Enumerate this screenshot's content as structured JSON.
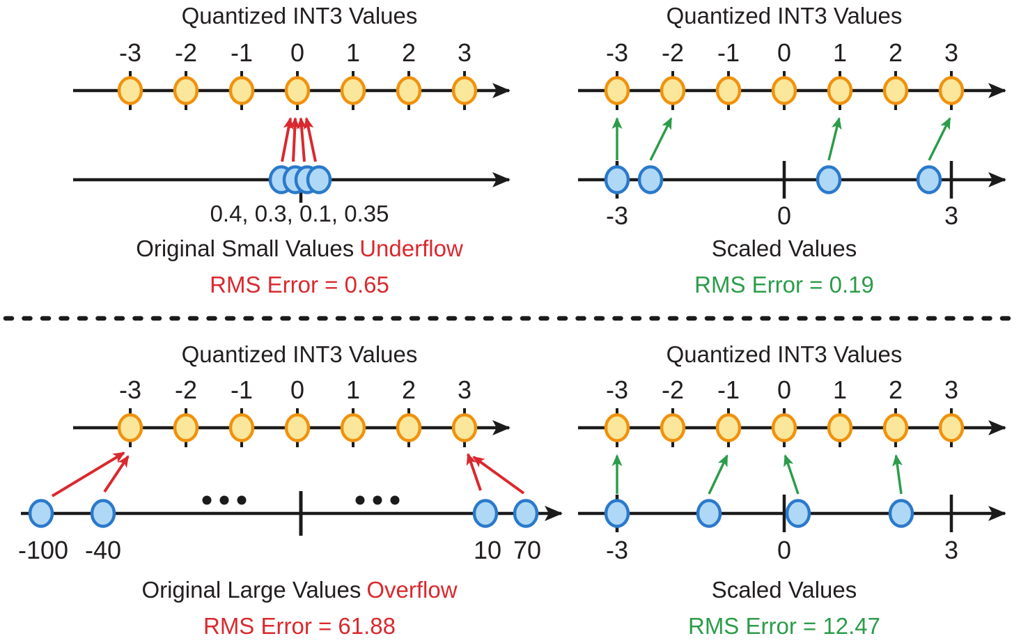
{
  "colors": {
    "text": "#221e1f",
    "line": "#1b1b1b",
    "red": "#d9292e",
    "green": "#2b9c49",
    "orange_stroke": "#f0920e",
    "orange_fill": "#fae79b",
    "blue_stroke": "#2b79cb",
    "blue_fill": "#aed8f6"
  },
  "diagram": {
    "panels": {
      "top_left": {
        "title": "Quantized INT3 Values",
        "int_labels": [
          "-3",
          "-2",
          "-1",
          "0",
          "1",
          "2",
          "3"
        ],
        "original_values": [
          0.4,
          0.3,
          0.1,
          0.35
        ],
        "mapped_to": [
          0,
          0,
          0,
          0
        ],
        "values_label": "0.4, 0.3, 0.1, 0.35",
        "caption_main": "Original Small Values",
        "caption_highlight": "Underflow",
        "rms_label": "RMS Error = 0.65"
      },
      "top_right": {
        "title": "Quantized INT3 Values",
        "int_labels": [
          "-3",
          "-2",
          "-1",
          "0",
          "1",
          "2",
          "3"
        ],
        "axis_tick_labels": [
          "-3",
          "0",
          "3"
        ],
        "scaled_points": [
          -3,
          -2.4,
          0.8,
          2.6
        ],
        "mapped_to": [
          -3,
          -2,
          1,
          3
        ],
        "caption_main": "Scaled Values",
        "rms_label": "RMS Error = 0.19"
      },
      "bottom_left": {
        "title": "Quantized INT3 Values",
        "int_labels": [
          "-3",
          "-2",
          "-1",
          "0",
          "1",
          "2",
          "3"
        ],
        "point_labels": [
          "-100",
          "-40",
          "10",
          "70"
        ],
        "mapped_to": [
          -3,
          -3,
          3,
          3
        ],
        "caption_main": "Original Large Values",
        "caption_highlight": "Overflow",
        "rms_label": "RMS Error = 61.88"
      },
      "bottom_right": {
        "title": "Quantized INT3 Values",
        "int_labels": [
          "-3",
          "-2",
          "-1",
          "0",
          "1",
          "2",
          "3"
        ],
        "axis_tick_labels": [
          "-3",
          "0",
          "3"
        ],
        "scaled_points": [
          -3,
          -1.35,
          0.25,
          2.1
        ],
        "mapped_to": [
          -3,
          -1,
          0,
          2
        ],
        "caption_main": "Scaled Values",
        "rms_label": "RMS Error = 12.47"
      }
    }
  }
}
